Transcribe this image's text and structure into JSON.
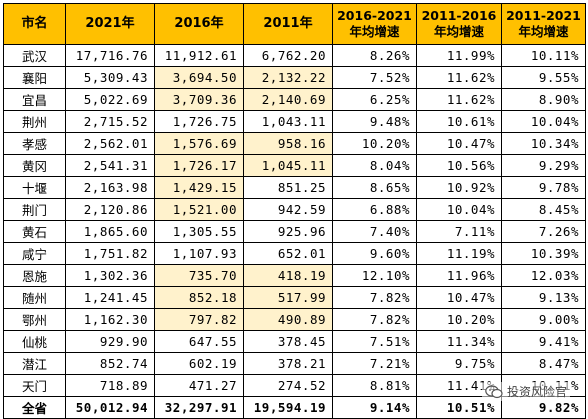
{
  "headers": {
    "city": "市名",
    "y2021": "2021年",
    "y2016": "2016年",
    "y2011": "2011年",
    "g1621_l1": "2016-2021",
    "g1621_l2": "年均增速",
    "g1116_l1": "2011-2016",
    "g1116_l2": "年均增速",
    "g1121_l1": "2011-2021",
    "g1121_l2": "年均增速"
  },
  "rows": [
    {
      "city": "武汉",
      "y2021": "17,716.76",
      "y2016": "11,912.61",
      "y2011": "6,762.20",
      "g1621": "8.26%",
      "g1116": "11.99%",
      "g1121": "10.11%"
    },
    {
      "city": "襄阳",
      "y2021": "5,309.43",
      "y2016": "3,694.50",
      "y2011": "2,132.22",
      "g1621": "7.52%",
      "g1116": "11.62%",
      "g1121": "9.55%"
    },
    {
      "city": "宜昌",
      "y2021": "5,022.69",
      "y2016": "3,709.36",
      "y2011": "2,140.69",
      "g1621": "6.25%",
      "g1116": "11.62%",
      "g1121": "8.90%"
    },
    {
      "city": "荆州",
      "y2021": "2,715.52",
      "y2016": "1,726.75",
      "y2011": "1,043.11",
      "g1621": "9.48%",
      "g1116": "10.61%",
      "g1121": "10.04%"
    },
    {
      "city": "孝感",
      "y2021": "2,562.01",
      "y2016": "1,576.69",
      "y2011": "958.16",
      "g1621": "10.20%",
      "g1116": "10.47%",
      "g1121": "10.34%"
    },
    {
      "city": "黄冈",
      "y2021": "2,541.31",
      "y2016": "1,726.17",
      "y2011": "1,045.11",
      "g1621": "8.04%",
      "g1116": "10.56%",
      "g1121": "9.29%"
    },
    {
      "city": "十堰",
      "y2021": "2,163.98",
      "y2016": "1,429.15",
      "y2011": "851.25",
      "g1621": "8.65%",
      "g1116": "10.92%",
      "g1121": "9.78%"
    },
    {
      "city": "荆门",
      "y2021": "2,120.86",
      "y2016": "1,521.00",
      "y2011": "942.59",
      "g1621": "6.88%",
      "g1116": "10.04%",
      "g1121": "8.45%"
    },
    {
      "city": "黄石",
      "y2021": "1,865.60",
      "y2016": "1,305.55",
      "y2011": "925.96",
      "g1621": "7.40%",
      "g1116": "7.11%",
      "g1121": "7.26%"
    },
    {
      "city": "咸宁",
      "y2021": "1,751.82",
      "y2016": "1,107.93",
      "y2011": "652.01",
      "g1621": "9.60%",
      "g1116": "11.19%",
      "g1121": "10.39%"
    },
    {
      "city": "恩施",
      "y2021": "1,302.36",
      "y2016": "735.70",
      "y2011": "418.19",
      "g1621": "12.10%",
      "g1116": "11.96%",
      "g1121": "12.03%"
    },
    {
      "city": "随州",
      "y2021": "1,241.45",
      "y2016": "852.18",
      "y2011": "517.99",
      "g1621": "7.82%",
      "g1116": "10.47%",
      "g1121": "9.13%"
    },
    {
      "city": "鄂州",
      "y2021": "1,162.30",
      "y2016": "797.82",
      "y2011": "490.89",
      "g1621": "7.82%",
      "g1116": "10.20%",
      "g1121": "9.00%"
    },
    {
      "city": "仙桃",
      "y2021": "929.90",
      "y2016": "647.55",
      "y2011": "378.45",
      "g1621": "7.51%",
      "g1116": "11.34%",
      "g1121": "9.41%"
    },
    {
      "city": "潜江",
      "y2021": "852.74",
      "y2016": "602.19",
      "y2011": "378.21",
      "g1621": "7.21%",
      "g1116": "9.75%",
      "g1121": "8.47%"
    },
    {
      "city": "天门",
      "y2021": "718.89",
      "y2016": "471.27",
      "y2011": "274.52",
      "g1621": "8.81%",
      "g1116": "11.41%",
      "g1121": "10.11%"
    }
  ],
  "total": {
    "city": "全省",
    "y2021": "50,012.94",
    "y2016": "32,297.91",
    "y2011": "19,594.19",
    "g1621": "9.14%",
    "g1116": "10.51%",
    "g1121": "9.82%"
  },
  "highlighted_cells": [
    "襄阳.y2016",
    "襄阳.y2011",
    "宜昌.y2016",
    "宜昌.y2011",
    "孝感.y2016",
    "孝感.y2011",
    "黄冈.y2016",
    "黄冈.y2011",
    "十堰.y2016",
    "荆门.y2016",
    "恩施.y2016",
    "恩施.y2011",
    "随州.y2016",
    "随州.y2011",
    "鄂州.y2016",
    "鄂州.y2011"
  ],
  "colors": {
    "header_bg": "#ffc000",
    "highlight_bg": "#fff2cc",
    "border": "#000000"
  },
  "watermark": {
    "icon": "wechat-chat-icon",
    "text": "投资风险官"
  }
}
